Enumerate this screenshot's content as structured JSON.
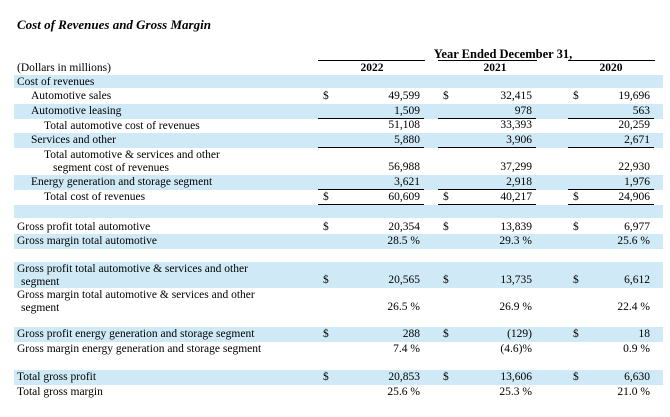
{
  "title": "Cost of Revenues and Gross Margin",
  "period_header": "Year Ended December 31,",
  "years": [
    "2022",
    "2021",
    "2020"
  ],
  "units_label": "(Dollars in millions)",
  "rows": [
    {
      "id": "cost-of-revenues",
      "label": [
        "Cost of revenues"
      ],
      "indent": 0,
      "shade": true,
      "vals": [
        "",
        "",
        ""
      ],
      "dollar": false
    },
    {
      "id": "automotive-sales",
      "label": [
        "Automotive sales"
      ],
      "indent": 1,
      "shade": false,
      "vals": [
        "49,599",
        "32,415",
        "19,696"
      ],
      "dollar": true
    },
    {
      "id": "automotive-leasing",
      "label": [
        "Automotive leasing"
      ],
      "indent": 1,
      "shade": true,
      "vals": [
        "1,509",
        "978",
        "563"
      ],
      "dollar": false,
      "underline": "single"
    },
    {
      "id": "total-automotive-cost",
      "label": [
        "Total automotive cost of revenues"
      ],
      "indent": 2,
      "shade": false,
      "vals": [
        "51,108",
        "33,393",
        "20,259"
      ],
      "dollar": false
    },
    {
      "id": "services-and-other",
      "label": [
        "Services and other"
      ],
      "indent": 1,
      "shade": true,
      "vals": [
        "5,880",
        "3,906",
        "2,671"
      ],
      "dollar": false,
      "underline": "single"
    },
    {
      "id": "total-auto-services-cost",
      "label": [
        "Total automotive & services and other",
        "segment cost of revenues"
      ],
      "indent": 2,
      "shade": false,
      "vals": [
        "56,988",
        "37,299",
        "22,930"
      ],
      "dollar": false
    },
    {
      "id": "energy-gen-storage",
      "label": [
        "Energy generation and storage segment"
      ],
      "indent": 1,
      "shade": true,
      "vals": [
        "3,621",
        "2,918",
        "1,976"
      ],
      "dollar": false,
      "underline": "single"
    },
    {
      "id": "total-cost-of-revenues",
      "label": [
        "Total cost of revenues"
      ],
      "indent": 2,
      "shade": false,
      "vals": [
        "60,609",
        "40,217",
        "24,906"
      ],
      "dollar": true,
      "underline": "double"
    },
    {
      "id": "blank-1",
      "label": [
        ""
      ],
      "indent": 0,
      "shade": true,
      "vals": [
        "",
        "",
        ""
      ],
      "dollar": false
    },
    {
      "id": "gp-total-automotive",
      "label": [
        "Gross profit total automotive"
      ],
      "indent": 0,
      "shade": false,
      "vals": [
        "20,354",
        "13,839",
        "6,977"
      ],
      "dollar": true
    },
    {
      "id": "gm-total-automotive",
      "label": [
        "Gross margin total automotive"
      ],
      "indent": 0,
      "shade": true,
      "vals": [
        "28.5 %",
        "29.3 %",
        "25.6 %"
      ],
      "dollar": false
    },
    {
      "id": "blank-2",
      "label": [
        ""
      ],
      "indent": 0,
      "shade": false,
      "vals": [
        "",
        "",
        ""
      ],
      "dollar": false
    },
    {
      "id": "gp-total-auto-services",
      "label": [
        "Gross profit total automotive & services and other",
        "segment"
      ],
      "indent": 0,
      "shade": true,
      "vals": [
        "20,565",
        "13,735",
        "6,612"
      ],
      "dollar": true
    },
    {
      "id": "gm-total-auto-services",
      "label": [
        "Gross margin total automotive & services and other",
        "segment"
      ],
      "indent": 0,
      "shade": false,
      "vals": [
        "26.5 %",
        "26.9 %",
        "22.4 %"
      ],
      "dollar": false
    },
    {
      "id": "blank-3",
      "label": [
        ""
      ],
      "indent": 0,
      "shade": false,
      "vals": [
        "",
        "",
        ""
      ],
      "dollar": false
    },
    {
      "id": "gp-energy",
      "label": [
        "Gross profit energy generation and storage segment"
      ],
      "indent": 0,
      "shade": true,
      "vals": [
        "288",
        "(129)",
        "18"
      ],
      "dollar": true
    },
    {
      "id": "gm-energy",
      "label": [
        "Gross margin energy generation and storage segment"
      ],
      "indent": 0,
      "shade": false,
      "vals": [
        "7.4 %",
        "(4.6)%",
        "0.9 %"
      ],
      "dollar": false
    },
    {
      "id": "blank-4",
      "label": [
        ""
      ],
      "indent": 0,
      "shade": false,
      "vals": [
        "",
        "",
        ""
      ],
      "dollar": false
    },
    {
      "id": "total-gross-profit",
      "label": [
        "Total gross profit"
      ],
      "indent": 0,
      "shade": true,
      "vals": [
        "20,853",
        "13,606",
        "6,630"
      ],
      "dollar": true
    },
    {
      "id": "total-gross-margin",
      "label": [
        "Total gross margin"
      ],
      "indent": 0,
      "shade": false,
      "vals": [
        "25.6 %",
        "25.3 %",
        "21.0 %"
      ],
      "dollar": false
    }
  ],
  "dollar_sign": "$"
}
